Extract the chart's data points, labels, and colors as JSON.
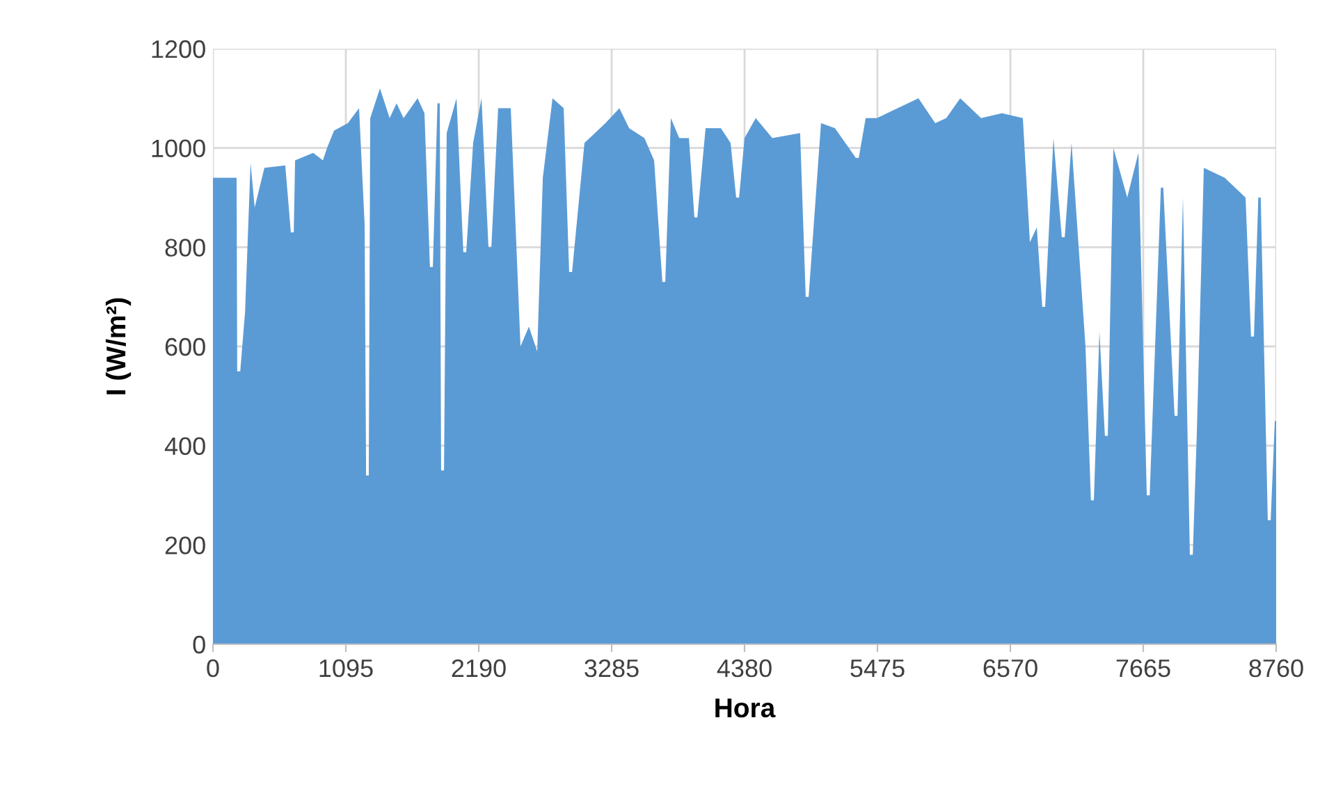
{
  "chart_data": {
    "type": "area",
    "xlabel": "Hora",
    "ylabel": "I (W/m²)",
    "xlim": [
      0,
      8760
    ],
    "xticks": [
      0,
      1095,
      2190,
      3285,
      4380,
      5475,
      6570,
      7665,
      8760
    ],
    "ylim": [
      0,
      1200
    ],
    "yticks": [
      0,
      200,
      400,
      600,
      800,
      1000,
      1200
    ],
    "grid": true,
    "series": [
      {
        "color": "#5b9bd5",
        "x": [
          0,
          195,
          200,
          225,
          265,
          310,
          344,
          424,
          596,
          642,
          666,
          677,
          826,
          906,
          940,
          998,
          1112,
          1204,
          1250,
          1262,
          1284,
          1296,
          1376,
          1456,
          1513,
          1571,
          1686,
          1743,
          1788,
          1812,
          1850,
          1869,
          1880,
          1904,
          1926,
          2007,
          2063,
          2087,
          2144,
          2213,
          2270,
          2294,
          2350,
          2454,
          2534,
          2603,
          2672,
          2718,
          2798,
          2890,
          2935,
          2959,
          3061,
          3234,
          3349,
          3429,
          3555,
          3635,
          3703,
          3727,
          3773,
          3842,
          3922,
          3967,
          3991,
          4059,
          4185,
          4265,
          4311,
          4335,
          4380,
          4472,
          4609,
          4838,
          4884,
          4908,
          5010,
          5125,
          5297,
          5321,
          5378,
          5469,
          5813,
          5951,
          6042,
          6157,
          6329,
          6501,
          6673,
          6731,
          6788,
          6833,
          6857,
          6925,
          6994,
          7018,
          7074,
          7189,
          7234,
          7258,
          7304,
          7349,
          7373,
          7419,
          7533,
          7625,
          7694,
          7718,
          7810,
          7830,
          7923,
          7947,
          7992,
          8049,
          8073,
          8107,
          8164,
          8336,
          8508,
          8553,
          8577,
          8613,
          8633,
          8691,
          8715,
          8749,
          8760
        ],
        "values": [
          940,
          940,
          550,
          550,
          670,
          970,
          880,
          960,
          965,
          830,
          830,
          975,
          990,
          975,
          1000,
          1035,
          1050,
          1080,
          845,
          340,
          340,
          1060,
          1120,
          1060,
          1090,
          1060,
          1100,
          1070,
          760,
          760,
          1090,
          1090,
          350,
          350,
          1030,
          1100,
          790,
          790,
          1010,
          1100,
          800,
          800,
          1080,
          1080,
          600,
          640,
          590,
          940,
          1100,
          1080,
          750,
          750,
          1010,
          1050,
          1080,
          1040,
          1020,
          975,
          730,
          730,
          1060,
          1020,
          1020,
          860,
          860,
          1040,
          1040,
          1010,
          900,
          900,
          1020,
          1060,
          1020,
          1030,
          700,
          700,
          1050,
          1040,
          980,
          980,
          1060,
          1060,
          1100,
          1050,
          1060,
          1100,
          1060,
          1070,
          1060,
          810,
          840,
          680,
          680,
          1020,
          820,
          820,
          1010,
          600,
          290,
          290,
          630,
          420,
          420,
          1000,
          900,
          990,
          300,
          300,
          920,
          920,
          460,
          460,
          900,
          180,
          180,
          430,
          960,
          940,
          900,
          620,
          620,
          900,
          900,
          250,
          250,
          450,
          450
        ]
      }
    ]
  }
}
